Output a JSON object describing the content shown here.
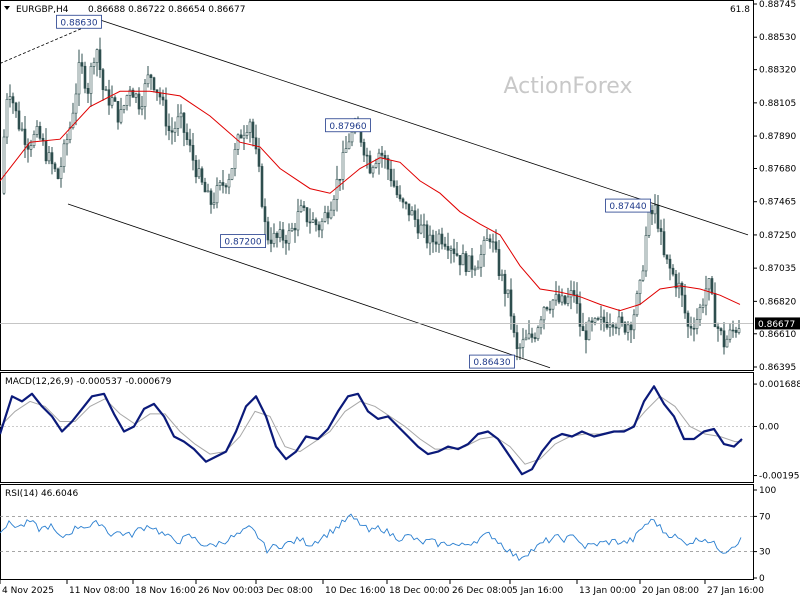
{
  "header": {
    "symbol": "EURGBP,H4",
    "ohlc": "0.86688 0.86722 0.86654 0.86677",
    "corner_value": "61.8"
  },
  "watermark": "ActionForex",
  "colors": {
    "candles": "#2f4f4f",
    "ma": "#e00000",
    "macd": "#0b1a7a",
    "signal": "#a8a8a8",
    "rsi": "#2a7fd0",
    "channel": "#000000",
    "label_border": "#1f3a8a",
    "label_text": "#1f3a8a",
    "price_box": "#000000"
  },
  "chart_data": [
    {
      "type": "candlestick",
      "title": "",
      "ylim": [
        0.86395,
        0.88745
      ],
      "y_ticks": [
        "0.88745",
        "0.88530",
        "0.88320",
        "0.88105",
        "0.87890",
        "0.87680",
        "0.87465",
        "0.87250",
        "0.87035",
        "0.86820",
        "0.86610",
        "0.86395"
      ],
      "current_price": "0.86677",
      "close_path": [
        [
          0,
          0.8752
        ],
        [
          8,
          0.8825
        ],
        [
          18,
          0.8798
        ],
        [
          28,
          0.8785
        ],
        [
          38,
          0.879
        ],
        [
          48,
          0.8775
        ],
        [
          58,
          0.8762
        ],
        [
          70,
          0.8795
        ],
        [
          80,
          0.8835
        ],
        [
          88,
          0.882
        ],
        [
          96,
          0.885
        ],
        [
          104,
          0.8815
        ],
        [
          112,
          0.8812
        ],
        [
          120,
          0.88
        ],
        [
          130,
          0.8822
        ],
        [
          140,
          0.881
        ],
        [
          150,
          0.883
        ],
        [
          160,
          0.8815
        ],
        [
          170,
          0.879
        ],
        [
          180,
          0.88
        ],
        [
          190,
          0.878
        ],
        [
          200,
          0.876
        ],
        [
          210,
          0.8745
        ],
        [
          220,
          0.8755
        ],
        [
          230,
          0.8765
        ],
        [
          240,
          0.879
        ],
        [
          250,
          0.88
        ],
        [
          260,
          0.876
        ],
        [
          266,
          0.8725
        ],
        [
          276,
          0.8722
        ],
        [
          290,
          0.8725
        ],
        [
          300,
          0.874
        ],
        [
          310,
          0.8735
        ],
        [
          320,
          0.873
        ],
        [
          330,
          0.8745
        ],
        [
          340,
          0.8765
        ],
        [
          350,
          0.879
        ],
        [
          360,
          0.879
        ],
        [
          370,
          0.877
        ],
        [
          380,
          0.878
        ],
        [
          390,
          0.8765
        ],
        [
          400,
          0.8745
        ],
        [
          410,
          0.874
        ],
        [
          420,
          0.873
        ],
        [
          430,
          0.872
        ],
        [
          440,
          0.8725
        ],
        [
          450,
          0.872
        ],
        [
          460,
          0.871
        ],
        [
          470,
          0.8705
        ],
        [
          480,
          0.871
        ],
        [
          490,
          0.8725
        ],
        [
          500,
          0.87
        ],
        [
          510,
          0.868
        ],
        [
          516,
          0.8648
        ],
        [
          524,
          0.8655
        ],
        [
          534,
          0.866
        ],
        [
          544,
          0.868
        ],
        [
          554,
          0.8683
        ],
        [
          564,
          0.868
        ],
        [
          574,
          0.8688
        ],
        [
          582,
          0.866
        ],
        [
          592,
          0.8665
        ],
        [
          602,
          0.8668
        ],
        [
          612,
          0.8672
        ],
        [
          622,
          0.8665
        ],
        [
          632,
          0.867
        ],
        [
          640,
          0.869
        ],
        [
          648,
          0.8735
        ],
        [
          656,
          0.8742
        ],
        [
          664,
          0.871
        ],
        [
          672,
          0.87
        ],
        [
          680,
          0.869
        ],
        [
          688,
          0.8665
        ],
        [
          698,
          0.8672
        ],
        [
          708,
          0.8695
        ],
        [
          716,
          0.8668
        ],
        [
          724,
          0.8655
        ],
        [
          732,
          0.8662
        ],
        [
          740,
          0.8668
        ]
      ],
      "ma_path": [
        [
          0,
          0.876
        ],
        [
          30,
          0.8785
        ],
        [
          60,
          0.8787
        ],
        [
          90,
          0.8808
        ],
        [
          120,
          0.8818
        ],
        [
          150,
          0.8818
        ],
        [
          180,
          0.8815
        ],
        [
          210,
          0.8802
        ],
        [
          240,
          0.8785
        ],
        [
          260,
          0.8782
        ],
        [
          280,
          0.8768
        ],
        [
          310,
          0.8755
        ],
        [
          330,
          0.8752
        ],
        [
          360,
          0.8768
        ],
        [
          380,
          0.8775
        ],
        [
          400,
          0.8772
        ],
        [
          420,
          0.876
        ],
        [
          440,
          0.8752
        ],
        [
          460,
          0.874
        ],
        [
          480,
          0.8732
        ],
        [
          500,
          0.8725
        ],
        [
          520,
          0.8705
        ],
        [
          540,
          0.869
        ],
        [
          560,
          0.8688
        ],
        [
          580,
          0.8685
        ],
        [
          600,
          0.868
        ],
        [
          620,
          0.8676
        ],
        [
          640,
          0.868
        ],
        [
          660,
          0.869
        ],
        [
          680,
          0.8692
        ],
        [
          700,
          0.869
        ],
        [
          720,
          0.8686
        ],
        [
          740,
          0.868
        ]
      ],
      "channel_lines": [
        {
          "from": [
            101,
            0.8864
          ],
          "to": [
            748,
            0.8725
          ],
          "style": "solid"
        },
        {
          "from": [
            68,
            0.8745
          ],
          "to": [
            550,
            0.8639
          ],
          "style": "solid"
        },
        {
          "from": [
            0,
            0.8836
          ],
          "to": [
            101,
            0.8864
          ],
          "style": "dashed"
        }
      ],
      "annotations": [
        {
          "text": "0.88630",
          "x": 79,
          "y": 0.8863
        },
        {
          "text": "0.87960",
          "x": 348,
          "y": 0.8796
        },
        {
          "text": "0.87200",
          "x": 243,
          "y": 0.8721
        },
        {
          "text": "0.87440",
          "x": 628,
          "y": 0.8744
        },
        {
          "text": "0.86430",
          "x": 492,
          "y": 0.8643
        }
      ]
    },
    {
      "type": "line",
      "title": "MACD(12,26,9) -0.000537 -0.000679",
      "ylim": [
        -0.00213,
        0.00185
      ],
      "y_ticks": [
        "0.001688",
        "0.00",
        "-0.001953"
      ],
      "macd_path": [
        [
          0,
          -0.0003
        ],
        [
          12,
          0.0012
        ],
        [
          22,
          0.001
        ],
        [
          32,
          0.0013
        ],
        [
          42,
          0.0008
        ],
        [
          52,
          0.0004
        ],
        [
          62,
          -0.0002
        ],
        [
          72,
          0.0002
        ],
        [
          82,
          0.0007
        ],
        [
          92,
          0.0012
        ],
        [
          104,
          0.0013
        ],
        [
          114,
          0.0005
        ],
        [
          124,
          -0.0002
        ],
        [
          134,
          0.0
        ],
        [
          144,
          0.0007
        ],
        [
          154,
          0.0009
        ],
        [
          164,
          0.0004
        ],
        [
          174,
          -0.0004
        ],
        [
          184,
          -0.0006
        ],
        [
          194,
          -0.0009
        ],
        [
          206,
          -0.0014
        ],
        [
          216,
          -0.0012
        ],
        [
          226,
          -0.001
        ],
        [
          236,
          -0.0002
        ],
        [
          246,
          0.0008
        ],
        [
          256,
          0.0012
        ],
        [
          266,
          0.0004
        ],
        [
          276,
          -0.0008
        ],
        [
          286,
          -0.0013
        ],
        [
          296,
          -0.001
        ],
        [
          306,
          -0.0004
        ],
        [
          318,
          -0.0005
        ],
        [
          328,
          -0.0001
        ],
        [
          338,
          0.0006
        ],
        [
          348,
          0.0012
        ],
        [
          358,
          0.0013
        ],
        [
          368,
          0.0006
        ],
        [
          378,
          0.0003
        ],
        [
          388,
          0.0004
        ],
        [
          398,
          0.0
        ],
        [
          408,
          -0.0004
        ],
        [
          418,
          -0.0008
        ],
        [
          428,
          -0.0011
        ],
        [
          438,
          -0.001
        ],
        [
          448,
          -0.0008
        ],
        [
          458,
          -0.0009
        ],
        [
          468,
          -0.0007
        ],
        [
          478,
          -0.0003
        ],
        [
          488,
          -0.0002
        ],
        [
          498,
          -0.0005
        ],
        [
          510,
          -0.0012
        ],
        [
          522,
          -0.0019
        ],
        [
          532,
          -0.0017
        ],
        [
          542,
          -0.001
        ],
        [
          552,
          -0.0005
        ],
        [
          562,
          -0.0003
        ],
        [
          572,
          -0.0004
        ],
        [
          582,
          -0.0002
        ],
        [
          594,
          -0.0004
        ],
        [
          604,
          -0.0003
        ],
        [
          614,
          -0.0002
        ],
        [
          624,
          -0.0002
        ],
        [
          634,
          0.0
        ],
        [
          644,
          0.001
        ],
        [
          654,
          0.0016
        ],
        [
          664,
          0.0009
        ],
        [
          674,
          0.0004
        ],
        [
          684,
          -0.0005
        ],
        [
          694,
          -0.0005
        ],
        [
          704,
          -0.0002
        ],
        [
          714,
          -0.0001
        ],
        [
          724,
          -0.0007
        ],
        [
          734,
          -0.0008
        ],
        [
          742,
          -0.0005
        ]
      ],
      "signal_path": [
        [
          0,
          0.0
        ],
        [
          15,
          0.0006
        ],
        [
          30,
          0.001
        ],
        [
          45,
          0.0008
        ],
        [
          60,
          0.0002
        ],
        [
          75,
          0.0002
        ],
        [
          90,
          0.0008
        ],
        [
          105,
          0.0011
        ],
        [
          120,
          0.0005
        ],
        [
          135,
          0.0001
        ],
        [
          150,
          0.0005
        ],
        [
          165,
          0.0005
        ],
        [
          180,
          -0.0002
        ],
        [
          195,
          -0.0007
        ],
        [
          210,
          -0.0011
        ],
        [
          225,
          -0.001
        ],
        [
          240,
          -0.0004
        ],
        [
          255,
          0.0006
        ],
        [
          270,
          0.0004
        ],
        [
          285,
          -0.0008
        ],
        [
          300,
          -0.001
        ],
        [
          315,
          -0.0006
        ],
        [
          330,
          -0.0002
        ],
        [
          345,
          0.0006
        ],
        [
          360,
          0.001
        ],
        [
          375,
          0.0008
        ],
        [
          390,
          0.0004
        ],
        [
          405,
          0.0
        ],
        [
          420,
          -0.0005
        ],
        [
          435,
          -0.0009
        ],
        [
          450,
          -0.0009
        ],
        [
          465,
          -0.0008
        ],
        [
          480,
          -0.0005
        ],
        [
          495,
          -0.0004
        ],
        [
          510,
          -0.0008
        ],
        [
          525,
          -0.0015
        ],
        [
          540,
          -0.0013
        ],
        [
          555,
          -0.0007
        ],
        [
          570,
          -0.0004
        ],
        [
          585,
          -0.0003
        ],
        [
          600,
          -0.0003
        ],
        [
          615,
          -0.0002
        ],
        [
          630,
          -0.0001
        ],
        [
          645,
          0.0006
        ],
        [
          660,
          0.0012
        ],
        [
          675,
          0.0008
        ],
        [
          690,
          0.0
        ],
        [
          705,
          -0.0003
        ],
        [
          720,
          -0.0004
        ],
        [
          735,
          -0.0006
        ],
        [
          742,
          -0.0006
        ]
      ]
    },
    {
      "type": "line",
      "title": "RSI(14) 46.6046",
      "ylim": [
        0,
        100
      ],
      "y_ticks": [
        "100",
        "70",
        "30",
        "0"
      ],
      "levels": [
        70,
        30
      ],
      "rsi_path": [
        [
          0,
          55
        ],
        [
          10,
          62
        ],
        [
          20,
          58
        ],
        [
          30,
          64
        ],
        [
          40,
          55
        ],
        [
          50,
          60
        ],
        [
          60,
          45
        ],
        [
          70,
          52
        ],
        [
          80,
          60
        ],
        [
          90,
          58
        ],
        [
          100,
          64
        ],
        [
          110,
          50
        ],
        [
          120,
          52
        ],
        [
          130,
          48
        ],
        [
          140,
          56
        ],
        [
          150,
          60
        ],
        [
          160,
          52
        ],
        [
          170,
          45
        ],
        [
          180,
          42
        ],
        [
          190,
          48
        ],
        [
          200,
          40
        ],
        [
          210,
          36
        ],
        [
          220,
          40
        ],
        [
          230,
          45
        ],
        [
          240,
          50
        ],
        [
          250,
          57
        ],
        [
          260,
          45
        ],
        [
          266,
          32
        ],
        [
          276,
          36
        ],
        [
          290,
          40
        ],
        [
          300,
          44
        ],
        [
          310,
          38
        ],
        [
          320,
          45
        ],
        [
          330,
          52
        ],
        [
          340,
          60
        ],
        [
          350,
          70
        ],
        [
          360,
          62
        ],
        [
          370,
          52
        ],
        [
          380,
          58
        ],
        [
          390,
          50
        ],
        [
          400,
          45
        ],
        [
          410,
          48
        ],
        [
          420,
          40
        ],
        [
          430,
          42
        ],
        [
          440,
          38
        ],
        [
          450,
          40
        ],
        [
          460,
          36
        ],
        [
          470,
          40
        ],
        [
          480,
          45
        ],
        [
          490,
          50
        ],
        [
          500,
          40
        ],
        [
          510,
          30
        ],
        [
          518,
          22
        ],
        [
          526,
          28
        ],
        [
          536,
          34
        ],
        [
          546,
          42
        ],
        [
          556,
          46
        ],
        [
          566,
          44
        ],
        [
          576,
          48
        ],
        [
          584,
          35
        ],
        [
          594,
          38
        ],
        [
          604,
          40
        ],
        [
          614,
          42
        ],
        [
          624,
          40
        ],
        [
          634,
          44
        ],
        [
          644,
          60
        ],
        [
          654,
          66
        ],
        [
          664,
          52
        ],
        [
          674,
          48
        ],
        [
          684,
          40
        ],
        [
          694,
          42
        ],
        [
          704,
          46
        ],
        [
          714,
          38
        ],
        [
          724,
          30
        ],
        [
          734,
          38
        ],
        [
          742,
          44
        ]
      ]
    }
  ],
  "x_axis_labels": [
    {
      "text": "4 Nov 2025",
      "x": 27
    },
    {
      "text": "11 Nov 08:00",
      "x": 94
    },
    {
      "text": "18 Nov 16:00",
      "x": 160
    },
    {
      "text": "26 Nov 00:00",
      "x": 223
    },
    {
      "text": "3 Dec 08:00",
      "x": 283
    },
    {
      "text": "10 Dec 16:00",
      "x": 350
    },
    {
      "text": "18 Dec 00:00",
      "x": 414
    },
    {
      "text": "26 Dec 08:00",
      "x": 477
    },
    {
      "text": "5 Jan 16:00",
      "x": 537
    },
    {
      "text": "13 Jan 00:00",
      "x": 604
    },
    {
      "text": "20 Jan 08:00",
      "x": 667
    },
    {
      "text": "27 Jan 16:00",
      "x": 732
    }
  ]
}
